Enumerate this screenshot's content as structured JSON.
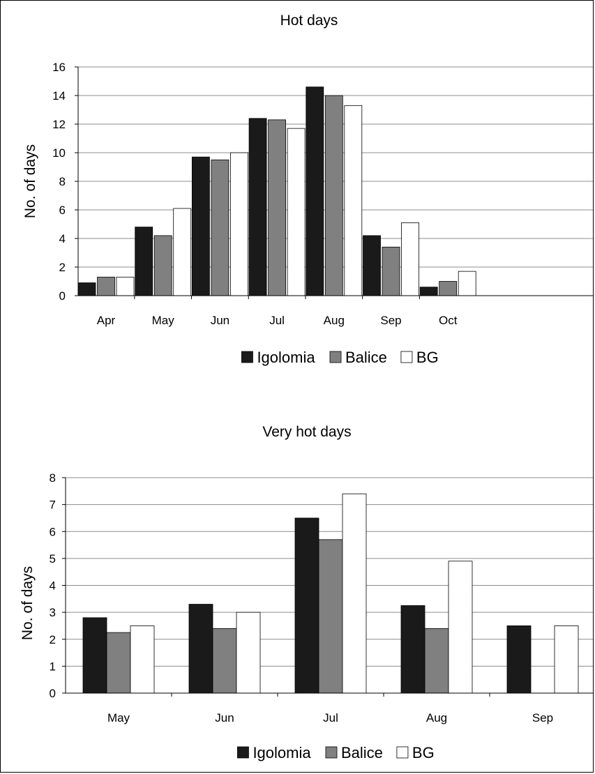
{
  "colors": {
    "Igolomia": "#1a1a1a",
    "Balice": "#808080",
    "BG": "#ffffff",
    "grid": "#8c8c8c",
    "axis": "#000000"
  },
  "chart_data": [
    {
      "type": "bar",
      "title": "Hot days",
      "xlabel": "",
      "ylabel": "No. of days",
      "categories": [
        "Apr",
        "May",
        "Jun",
        "Jul",
        "Aug",
        "Sep",
        "Oct"
      ],
      "series": [
        {
          "name": "Igolomia",
          "values": [
            0.9,
            4.8,
            9.7,
            12.4,
            14.6,
            4.2,
            0.6
          ]
        },
        {
          "name": "Balice",
          "values": [
            1.3,
            4.2,
            9.5,
            12.3,
            14.0,
            3.4,
            1.0
          ]
        },
        {
          "name": "BG",
          "values": [
            1.3,
            6.1,
            10.0,
            11.7,
            13.3,
            5.1,
            1.7
          ]
        }
      ],
      "ylim": [
        0,
        16
      ],
      "yticks": [
        "0",
        "2",
        "4",
        "6",
        "8",
        "10",
        "12",
        "14",
        "16"
      ],
      "grid": true,
      "legend": "bottom-center"
    },
    {
      "type": "bar",
      "title": "Very hot days",
      "xlabel": "",
      "ylabel": "No. of days",
      "categories": [
        "May",
        "Jun",
        "Jul",
        "Aug",
        "Sep"
      ],
      "series": [
        {
          "name": "Igolomia",
          "values": [
            2.8,
            3.3,
            6.5,
            3.25,
            2.5
          ]
        },
        {
          "name": "Balice",
          "values": [
            2.25,
            2.4,
            5.7,
            2.4,
            0
          ]
        },
        {
          "name": "BG",
          "values": [
            2.5,
            3.0,
            7.4,
            4.9,
            2.5
          ]
        }
      ],
      "ylim": [
        0,
        8
      ],
      "yticks": [
        "0",
        "1",
        "2",
        "3",
        "4",
        "5",
        "6",
        "7",
        "8"
      ],
      "grid": true,
      "legend": "bottom-center"
    }
  ]
}
